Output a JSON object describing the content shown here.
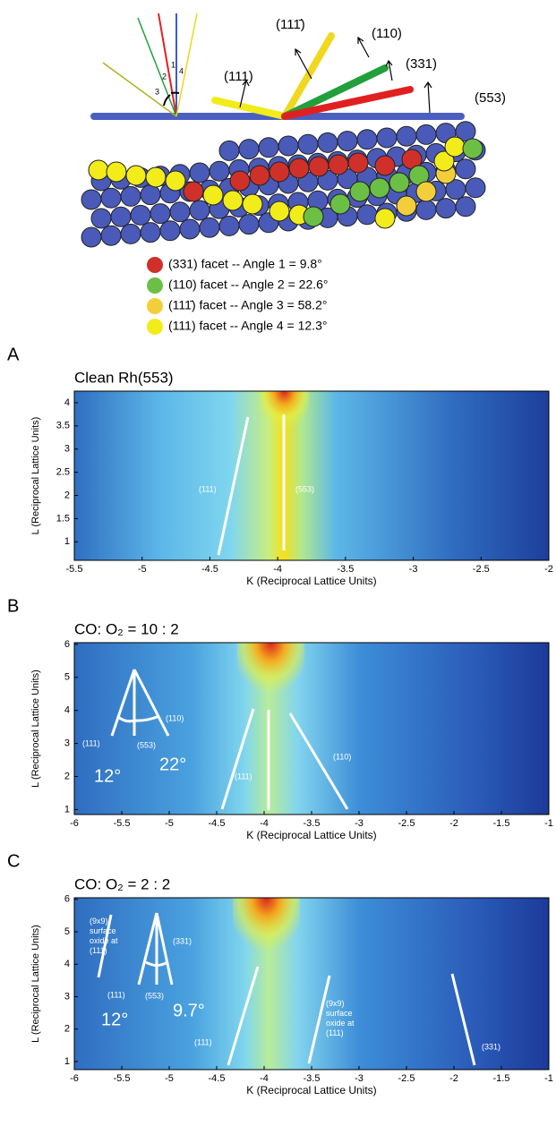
{
  "schematic": {
    "labels": [
      "(111)",
      "(111̄)",
      "(110)",
      "(331)",
      "(553)"
    ],
    "angles": [
      "1",
      "2",
      "3",
      "4"
    ]
  },
  "legend": [
    {
      "color": "#d0302a",
      "text": "(331) facet -- Angle 1 = 9.8°"
    },
    {
      "color": "#6cbf45",
      "text": "(110) facet -- Angle 2 = 22.6°"
    },
    {
      "color": "#f2cf3a",
      "text": "(111̄) facet -- Angle 3 = 58.2°"
    },
    {
      "color": "#f1ec1a",
      "text": "(111) facet -- Angle 4 = 12.3°"
    }
  ],
  "panels": [
    {
      "letter": "A",
      "title": "Clean Rh(553)",
      "xlabel": "K (Reciprocal Lattice Units)",
      "ylabel": "L (Reciprocal Lattice Units)",
      "xlim": [
        -5.5,
        -2
      ],
      "ylim": [
        0.6,
        4.25
      ],
      "xticks": [
        -5.5,
        -5,
        -4.5,
        -4,
        -3.5,
        -3,
        -2.5,
        -2
      ],
      "yticks": [
        1,
        1.5,
        2,
        2.5,
        3,
        3.5,
        4
      ],
      "annotations": [
        "(111)",
        "(553)"
      ]
    },
    {
      "letter": "B",
      "title": "CO: O₂ = 10 : 2",
      "xlabel": "K (Reciprocal Lattice Units)",
      "ylabel": "L (Reciprocal Lattice Units)",
      "xlim": [
        -6,
        -1
      ],
      "ylim": [
        0.85,
        6.05
      ],
      "xticks": [
        -6,
        -5.5,
        -5,
        -4.5,
        -4,
        -3.5,
        -3,
        -2.5,
        -2,
        -1.5,
        -1
      ],
      "yticks": [
        1,
        2,
        3,
        4,
        5,
        6
      ],
      "annotations": [
        "(111)",
        "(553)",
        "(110)",
        "12°",
        "22°",
        "(111)",
        "(110)"
      ]
    },
    {
      "letter": "C",
      "title": "CO: O₂ = 2 : 2",
      "xlabel": "K (Reciprocal Lattice Units)",
      "ylabel": "L (Reciprocal Lattice Units)",
      "xlim": [
        -6,
        -1
      ],
      "ylim": [
        0.75,
        6.05
      ],
      "xticks": [
        -6,
        -5.5,
        -5,
        -4.5,
        -4,
        -3.5,
        -3,
        -2.5,
        -2,
        -1.5,
        -1
      ],
      "yticks": [
        1,
        2,
        3,
        4,
        5,
        6
      ],
      "annotations": [
        [
          "(9x9)",
          "surface",
          "oxide at",
          "(111)"
        ],
        "(331)",
        "(111)",
        "(553)",
        "12°",
        "9.7°",
        "(111)",
        [
          "(9x9)",
          "surface",
          "oxide at",
          "(111)"
        ],
        "(331)"
      ]
    }
  ]
}
